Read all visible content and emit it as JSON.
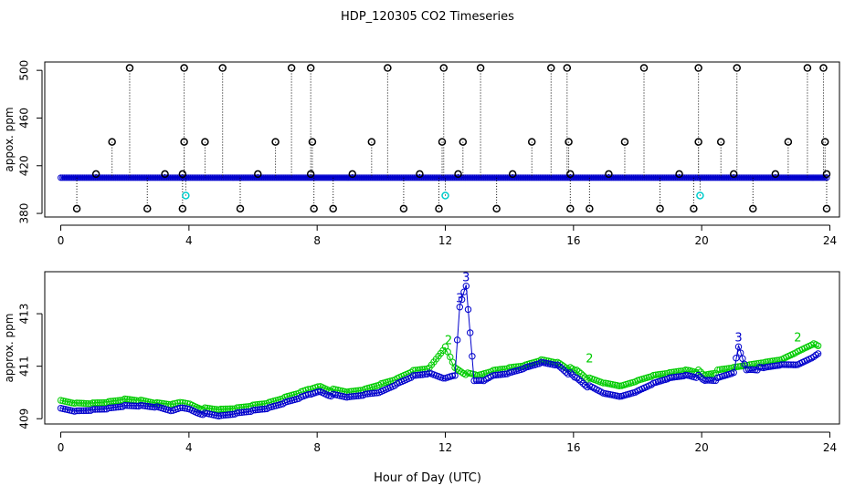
{
  "title": "HDP_120305  CO2 Timeseries",
  "xlabel": "Hour of Day (UTC)",
  "colors": {
    "outlier": "#000000",
    "series_blue": "#0000cc",
    "series_green": "#00cc00",
    "cyan": "#00cccc",
    "axis": "#000000"
  },
  "chart_data": [
    {
      "type": "scatter",
      "panel": "top",
      "ylabel": "appox. ppm",
      "xlim": [
        -0.5,
        24.3
      ],
      "ylim": [
        377,
        507
      ],
      "xticks": [
        0,
        4,
        8,
        12,
        16,
        20,
        24
      ],
      "yticks": [
        380,
        420,
        460,
        500
      ],
      "baseline": 410,
      "series": [
        {
          "name": "main",
          "marker": "o",
          "color": "blue",
          "x_range": [
            0,
            23.9
          ],
          "level": 410
        },
        {
          "name": "outliers-high",
          "marker": "o",
          "color": "black",
          "x": [
            2.15,
            3.85,
            5.05,
            7.2,
            7.8,
            10.2,
            11.95,
            13.1,
            15.3,
            15.8,
            18.2,
            19.9,
            21.1,
            23.3,
            23.8
          ],
          "y": [
            502,
            502,
            502,
            502,
            502,
            502,
            502,
            502,
            502,
            502,
            502,
            502,
            502,
            502,
            502
          ]
        },
        {
          "name": "outliers-mid",
          "marker": "o",
          "color": "black",
          "x": [
            1.6,
            3.85,
            4.5,
            6.7,
            7.85,
            9.7,
            11.9,
            12.55,
            14.7,
            15.85,
            17.6,
            19.9,
            20.6,
            22.7,
            23.85
          ],
          "y": [
            440,
            440,
            440,
            440,
            440,
            440,
            440,
            440,
            440,
            440,
            440,
            440,
            440,
            440,
            440
          ]
        },
        {
          "name": "outliers-low",
          "marker": "o",
          "color": "black",
          "x": [
            0.5,
            2.7,
            3.8,
            5.6,
            7.9,
            8.5,
            10.7,
            11.8,
            13.6,
            15.9,
            16.5,
            18.7,
            19.75,
            21.6,
            23.9
          ],
          "y": [
            384,
            384,
            384,
            384,
            384,
            384,
            384,
            384,
            384,
            384,
            384,
            384,
            384,
            384,
            384
          ]
        },
        {
          "name": "outliers-near",
          "marker": "o",
          "color": "black",
          "x": [
            1.1,
            3.25,
            3.8,
            6.15,
            7.8,
            9.1,
            11.2,
            12.4,
            14.1,
            15.9,
            17.1,
            19.3,
            21.0,
            22.3,
            23.9
          ],
          "y": [
            413,
            413,
            413,
            413,
            413,
            413,
            413,
            413,
            413,
            413,
            413,
            413,
            413,
            413,
            413
          ]
        },
        {
          "name": "cyan",
          "marker": "o",
          "color": "cyan",
          "x": [
            3.9,
            12.0,
            19.95
          ],
          "y": [
            395,
            395,
            395
          ]
        }
      ]
    },
    {
      "type": "scatter",
      "panel": "bottom",
      "ylabel": "approx. ppm",
      "xlim": [
        -0.5,
        24.3
      ],
      "ylim": [
        408.8,
        414.6
      ],
      "xticks": [
        0,
        4,
        8,
        12,
        16,
        20,
        24
      ],
      "yticks": [
        409,
        411,
        413
      ],
      "series": [
        {
          "name": "2",
          "marker": "o",
          "color": "green",
          "x": [
            0,
            0.5,
            1,
            1.5,
            2,
            2.5,
            3,
            3.5,
            3.8,
            4.1,
            4.5,
            5,
            5.5,
            6,
            6.5,
            7,
            7.5,
            7.8,
            8.1,
            8.5,
            9,
            9.5,
            10,
            10.5,
            11,
            11.5,
            12,
            12.3,
            12.7,
            13,
            13.5,
            14,
            14.5,
            15,
            15.5,
            15.9,
            16.1,
            16.5,
            17,
            17.5,
            18,
            18.5,
            19,
            19.5,
            19.9,
            20.1,
            20.5,
            21,
            21.5,
            22,
            22.5,
            23,
            23.5,
            23.7
          ],
          "y": [
            409.7,
            409.6,
            409.6,
            409.65,
            409.75,
            409.7,
            409.6,
            409.55,
            409.6,
            409.5,
            409.4,
            409.35,
            409.4,
            409.5,
            409.6,
            409.8,
            410.0,
            410.1,
            410.2,
            410.1,
            410.0,
            410.1,
            410.3,
            410.5,
            410.8,
            410.9,
            411.7,
            410.9,
            410.7,
            410.6,
            410.8,
            410.9,
            411.0,
            411.2,
            411.1,
            410.9,
            410.8,
            410.5,
            410.3,
            410.2,
            410.4,
            410.6,
            410.7,
            410.8,
            410.8,
            410.6,
            410.8,
            410.9,
            411.0,
            411.1,
            411.2,
            411.5,
            411.8,
            411.7
          ]
        },
        {
          "name": "3",
          "marker": "o",
          "color": "blue",
          "x": [
            0,
            0.5,
            1,
            1.5,
            2,
            2.5,
            3,
            3.5,
            3.8,
            4.1,
            4.5,
            5,
            5.5,
            6,
            6.5,
            7,
            7.5,
            7.8,
            8.1,
            8.5,
            9,
            9.5,
            10,
            10.5,
            11,
            11.5,
            12,
            12.3,
            12.45,
            12.65,
            12.9,
            13.2,
            13.5,
            14,
            14.5,
            15,
            15.5,
            15.9,
            16.1,
            16.5,
            17,
            17.5,
            18,
            18.5,
            19,
            19.5,
            19.9,
            20.1,
            20.5,
            21,
            21.15,
            21.4,
            21.8,
            22,
            22.5,
            23,
            23.5,
            23.7
          ],
          "y": [
            409.4,
            409.3,
            409.35,
            409.4,
            409.5,
            409.5,
            409.45,
            409.3,
            409.4,
            409.3,
            409.2,
            409.1,
            409.2,
            409.3,
            409.4,
            409.6,
            409.8,
            409.9,
            410.0,
            409.9,
            409.8,
            409.9,
            410.0,
            410.3,
            410.6,
            410.7,
            410.5,
            410.6,
            413.3,
            414.1,
            410.4,
            410.4,
            410.6,
            410.7,
            410.9,
            411.1,
            411.0,
            410.7,
            410.5,
            410.2,
            409.9,
            409.8,
            410.0,
            410.3,
            410.5,
            410.6,
            410.6,
            410.4,
            410.5,
            410.7,
            411.8,
            410.8,
            410.9,
            410.9,
            411.0,
            411.0,
            411.3,
            411.5
          ]
        }
      ],
      "labels": [
        {
          "text": "3",
          "x": 12.45,
          "y": 413.3,
          "color": "blue"
        },
        {
          "text": "3",
          "x": 12.65,
          "y": 414.1,
          "color": "blue"
        },
        {
          "text": "3",
          "x": 21.15,
          "y": 411.8,
          "color": "blue"
        },
        {
          "text": "2",
          "x": 12.1,
          "y": 411.7,
          "color": "green"
        },
        {
          "text": "2",
          "x": 16.5,
          "y": 411.0,
          "color": "green"
        },
        {
          "text": "2",
          "x": 23.0,
          "y": 411.8,
          "color": "green"
        }
      ]
    }
  ]
}
